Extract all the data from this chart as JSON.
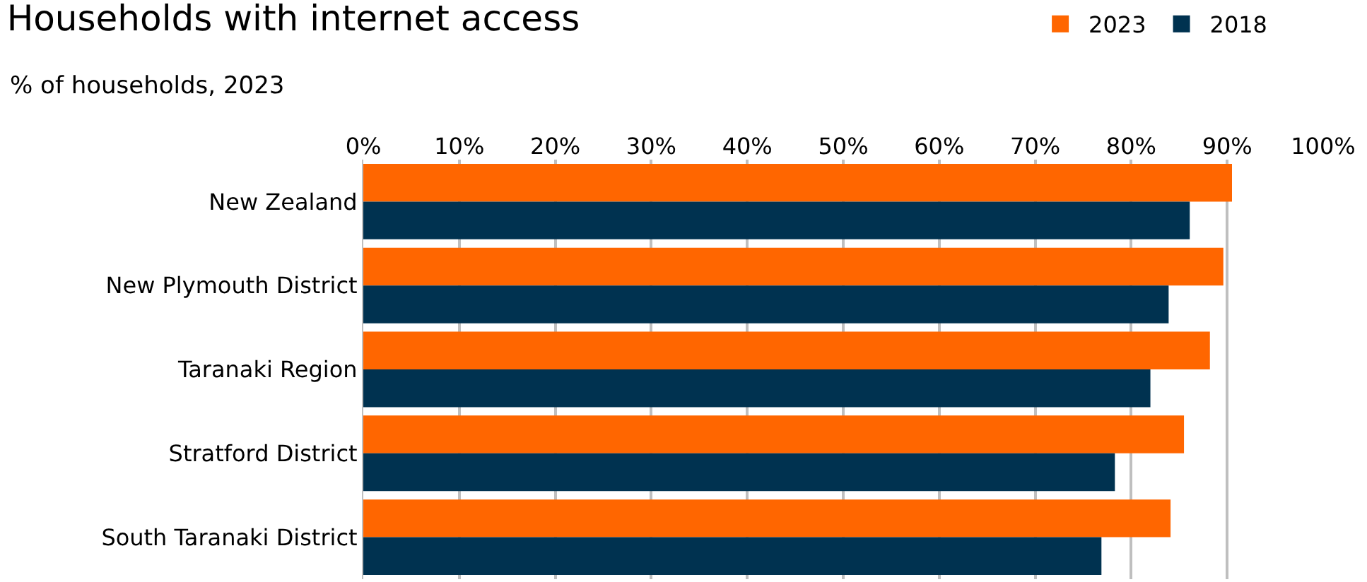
{
  "chart_data": {
    "type": "bar",
    "orientation": "horizontal",
    "title": "Households with internet access",
    "subtitle": "% of households, 2023",
    "categories": [
      "New Zealand",
      "New Plymouth District",
      "Taranaki Region",
      "Stratford District",
      "South Taranaki District"
    ],
    "series": [
      {
        "name": "2023",
        "color": "#ff6600",
        "values": [
          90.5,
          89.6,
          88.2,
          85.5,
          84.1
        ]
      },
      {
        "name": "2018",
        "color": "#003250",
        "values": [
          86.1,
          83.9,
          82.0,
          78.3,
          76.9
        ]
      }
    ],
    "xlim": [
      0,
      100
    ],
    "xticks": [
      {
        "value": 0,
        "label": "0%"
      },
      {
        "value": 10,
        "label": "10%"
      },
      {
        "value": 20,
        "label": "20%"
      },
      {
        "value": 30,
        "label": "30%"
      },
      {
        "value": 40,
        "label": "40%"
      },
      {
        "value": 50,
        "label": "50%"
      },
      {
        "value": 60,
        "label": "60%"
      },
      {
        "value": 70,
        "label": "70%"
      },
      {
        "value": 80,
        "label": "80%"
      },
      {
        "value": 90,
        "label": "90%"
      },
      {
        "value": 100,
        "label": "100%"
      }
    ],
    "grid": "x",
    "legend": "top right"
  }
}
